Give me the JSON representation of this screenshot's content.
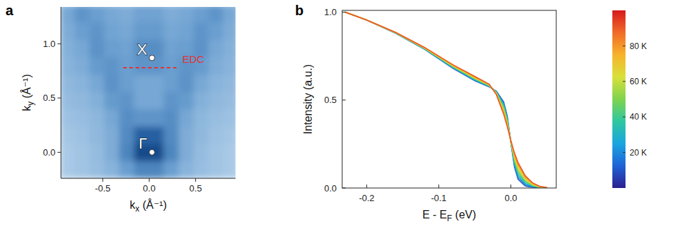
{
  "chart_data": [
    {
      "type": "heatmap",
      "panel": "a",
      "xlabel": {
        "symbol": "k",
        "subscript": "x",
        "unit": " (Å⁻¹)"
      },
      "ylabel": {
        "symbol": "k",
        "subscript": "y",
        "unit": " (Å⁻¹)"
      },
      "xlim": [
        -0.95,
        0.93
      ],
      "ylim": [
        -0.24,
        1.34
      ],
      "xticks": [
        -0.5,
        {
          "value": 0.0,
          "label": "0.0"
        },
        0.5
      ],
      "yticks": [
        {
          "value": 0.0,
          "label": "0.0"
        },
        0.5,
        {
          "value": 1.0,
          "label": "1.0"
        }
      ],
      "x": [
        -0.88,
        -0.72,
        -0.56,
        -0.4,
        -0.24,
        -0.08,
        0.08,
        0.24,
        0.4,
        0.56,
        0.72,
        0.88
      ],
      "y": [
        -0.16,
        0.0,
        0.16,
        0.32,
        0.48,
        0.64,
        0.8,
        0.96,
        1.12,
        1.28
      ],
      "zlim": [
        0,
        1
      ],
      "z": [
        [
          0.25,
          0.28,
          0.32,
          0.38,
          0.5,
          0.62,
          0.62,
          0.5,
          0.38,
          0.32,
          0.28,
          0.25
        ],
        [
          0.25,
          0.28,
          0.33,
          0.42,
          0.62,
          0.92,
          0.92,
          0.62,
          0.42,
          0.33,
          0.28,
          0.25
        ],
        [
          0.27,
          0.3,
          0.35,
          0.42,
          0.6,
          0.8,
          0.8,
          0.6,
          0.42,
          0.35,
          0.3,
          0.27
        ],
        [
          0.3,
          0.32,
          0.36,
          0.45,
          0.58,
          0.55,
          0.55,
          0.58,
          0.45,
          0.36,
          0.32,
          0.3
        ],
        [
          0.33,
          0.35,
          0.4,
          0.52,
          0.55,
          0.45,
          0.45,
          0.55,
          0.52,
          0.4,
          0.35,
          0.33
        ],
        [
          0.35,
          0.38,
          0.45,
          0.56,
          0.5,
          0.45,
          0.45,
          0.5,
          0.56,
          0.45,
          0.38,
          0.35
        ],
        [
          0.38,
          0.42,
          0.52,
          0.55,
          0.5,
          0.55,
          0.55,
          0.5,
          0.55,
          0.52,
          0.42,
          0.38
        ],
        [
          0.4,
          0.45,
          0.56,
          0.5,
          0.48,
          0.58,
          0.58,
          0.48,
          0.5,
          0.56,
          0.45,
          0.4
        ],
        [
          0.42,
          0.5,
          0.55,
          0.47,
          0.45,
          0.52,
          0.52,
          0.45,
          0.47,
          0.55,
          0.5,
          0.42
        ],
        [
          0.45,
          0.55,
          0.5,
          0.45,
          0.42,
          0.48,
          0.48,
          0.42,
          0.45,
          0.5,
          0.55,
          0.45
        ]
      ],
      "points": [
        {
          "label": "X",
          "x": 0.03,
          "y": 0.87
        },
        {
          "label": "Γ",
          "x": 0.03,
          "y": 0.0
        }
      ],
      "lines": [
        {
          "label": "EDC",
          "x": [
            -0.28,
            0.32
          ],
          "y": 0.78,
          "color": "#e8312f",
          "line_style": "dashed"
        }
      ],
      "grid": false
    },
    {
      "type": "line",
      "panel": "b",
      "xlabel": {
        "symbol": "E - E",
        "subscript": "F",
        "unit": " (eV)"
      },
      "ylabel": "Intensity (a.u.)",
      "xlim": [
        -0.234,
        0.063
      ],
      "ylim": [
        0,
        1.01
      ],
      "xticks": [
        -0.2,
        -0.1,
        {
          "value": 0.0,
          "label": "0.0"
        }
      ],
      "yticks": [
        {
          "value": 0.0,
          "label": "0.0"
        },
        0.5,
        {
          "value": 1.0,
          "label": "1.0"
        }
      ],
      "grid": false,
      "x": [
        -0.23,
        -0.2,
        -0.16,
        -0.12,
        -0.08,
        -0.05,
        -0.03,
        -0.02,
        -0.01,
        -0.005,
        0,
        0.005,
        0.01,
        0.02,
        0.03,
        0.04,
        0.05
      ],
      "series": [
        {
          "temperature": 10,
          "values": [
            1.0,
            0.955,
            0.88,
            0.79,
            0.68,
            0.61,
            0.575,
            0.55,
            0.49,
            0.41,
            0.26,
            0.12,
            0.05,
            0.012,
            0.004,
            0.001,
            0
          ]
        },
        {
          "temperature": 20,
          "values": [
            1.0,
            0.955,
            0.881,
            0.791,
            0.683,
            0.613,
            0.577,
            0.548,
            0.482,
            0.403,
            0.261,
            0.13,
            0.062,
            0.019,
            0.007,
            0.002,
            0
          ]
        },
        {
          "temperature": 30,
          "values": [
            1.0,
            0.955,
            0.881,
            0.792,
            0.685,
            0.616,
            0.579,
            0.545,
            0.473,
            0.395,
            0.262,
            0.14,
            0.074,
            0.026,
            0.01,
            0.003,
            0.001
          ]
        },
        {
          "temperature": 40,
          "values": [
            1.0,
            0.955,
            0.882,
            0.794,
            0.688,
            0.619,
            0.581,
            0.543,
            0.464,
            0.388,
            0.264,
            0.15,
            0.086,
            0.034,
            0.014,
            0.004,
            0.001
          ]
        },
        {
          "temperature": 50,
          "values": [
            1.0,
            0.955,
            0.883,
            0.795,
            0.69,
            0.622,
            0.583,
            0.54,
            0.455,
            0.38,
            0.265,
            0.16,
            0.098,
            0.041,
            0.017,
            0.005,
            0.001
          ]
        },
        {
          "temperature": 60,
          "values": [
            1.0,
            0.955,
            0.883,
            0.796,
            0.692,
            0.625,
            0.585,
            0.538,
            0.446,
            0.373,
            0.266,
            0.17,
            0.11,
            0.048,
            0.02,
            0.006,
            0.002
          ]
        },
        {
          "temperature": 70,
          "values": [
            1.0,
            0.955,
            0.884,
            0.797,
            0.695,
            0.628,
            0.587,
            0.535,
            0.437,
            0.365,
            0.267,
            0.18,
            0.122,
            0.055,
            0.023,
            0.007,
            0.002
          ]
        },
        {
          "temperature": 80,
          "values": [
            1.0,
            0.955,
            0.884,
            0.799,
            0.698,
            0.632,
            0.589,
            0.533,
            0.428,
            0.358,
            0.269,
            0.19,
            0.134,
            0.063,
            0.027,
            0.009,
            0.003
          ]
        },
        {
          "temperature": 90,
          "values": [
            1.0,
            0.955,
            0.885,
            0.8,
            0.7,
            0.635,
            0.59,
            0.53,
            0.42,
            0.35,
            0.27,
            0.2,
            0.145,
            0.07,
            0.03,
            0.01,
            0.003
          ]
        }
      ],
      "colorbar": {
        "range": [
          0,
          100
        ],
        "ticks": [
          {
            "value": 20,
            "label": "20 K"
          },
          {
            "value": 40,
            "label": "40 K"
          },
          {
            "value": 60,
            "label": "60 K"
          },
          {
            "value": 80,
            "label": "80 K"
          }
        ],
        "colors": [
          "#2c1f8f",
          "#1f63d6",
          "#1aa5e0",
          "#2fc7a0",
          "#7fd34e",
          "#d9e03a",
          "#f7b32b",
          "#f06a28",
          "#d7191c"
        ]
      }
    }
  ]
}
